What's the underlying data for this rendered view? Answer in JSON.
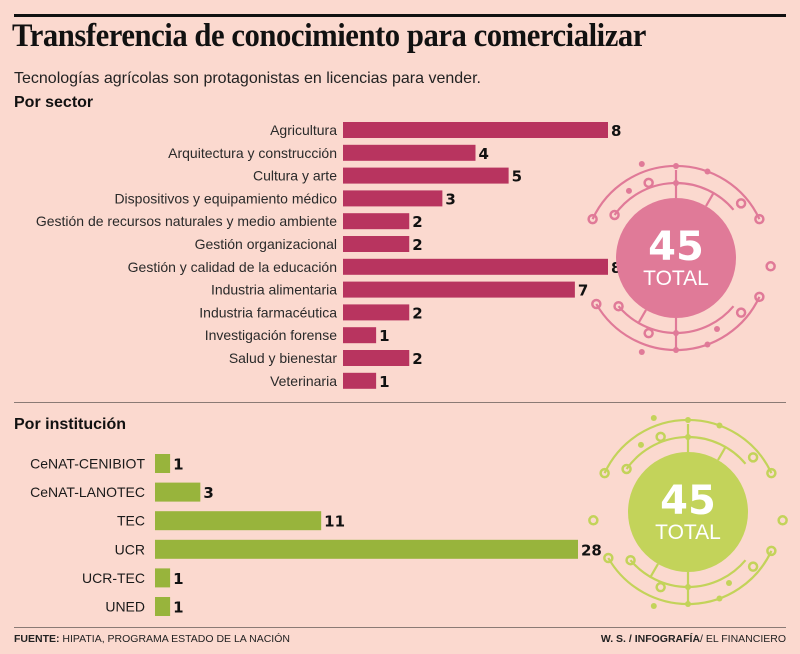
{
  "header": {
    "title": "Transferencia de conocimiento para comercializar",
    "subtitle": "Tecnologías agrícolas son protagonistas en licencias para vender."
  },
  "colors": {
    "background": "#fbd9cf",
    "sector_bar": "#b8345f",
    "sector_total_circle": "#e07a98",
    "institution_bar": "#98b43c",
    "institution_total_circle": "#c3d35a"
  },
  "chart_data": [
    {
      "type": "bar",
      "orientation": "horizontal",
      "title": "Por sector",
      "categories": [
        "Agricultura",
        "Arquitectura y construcción",
        "Cultura y arte",
        "Dispositivos y equipamiento médico",
        "Gestión de recursos naturales y medio ambiente",
        "Gestión organizacional",
        "Gestión y calidad de la educación",
        "Industria alimentaria",
        "Industria farmacéutica",
        "Investigación forense",
        "Salud y bienestar",
        "Veterinaria"
      ],
      "values": [
        8,
        4,
        5,
        3,
        2,
        2,
        8,
        7,
        2,
        1,
        2,
        1
      ],
      "xlim": [
        0,
        8
      ],
      "grid": false,
      "total": {
        "value": "45",
        "label": "TOTAL"
      }
    },
    {
      "type": "bar",
      "orientation": "horizontal",
      "title": "Por institución",
      "categories": [
        "CeNAT-CENIBIOT",
        "CeNAT-LANOTEC",
        "TEC",
        "UCR",
        "UCR-TEC",
        "UNED"
      ],
      "values": [
        1,
        3,
        11,
        28,
        1,
        1
      ],
      "xlim": [
        0,
        28
      ],
      "grid": false,
      "total": {
        "value": "45",
        "label": "TOTAL"
      }
    }
  ],
  "footer": {
    "source_label": "FUENTE:",
    "source_text": " HIPATIA, PROGRAMA ESTADO DE LA NACIÓN",
    "credit_author": "W. S. / ",
    "credit_dept": "INFOGRAFÍA",
    "credit_outlet": "/ EL FINANCIERO"
  }
}
